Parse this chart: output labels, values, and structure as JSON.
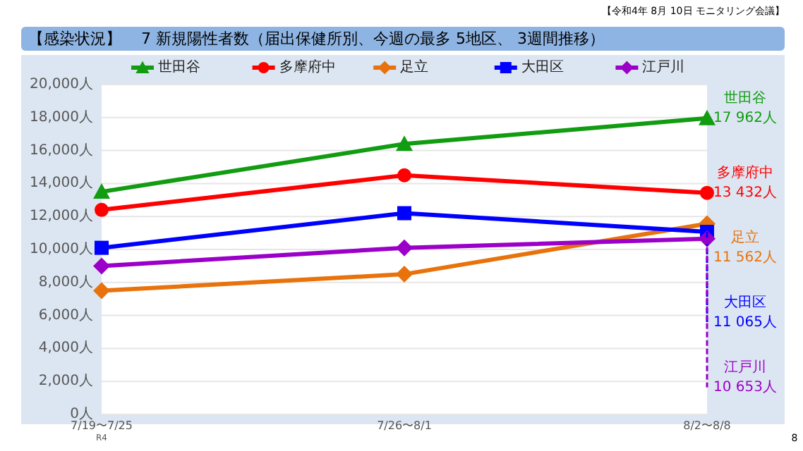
{
  "chart_data": {
    "type": "line",
    "title": "【感染状況】",
    "subtitle": "7 新規陽性者数（届出保健所別、今週の最多 5地区、 3週間推移）",
    "annotations": [
      "【令和4年 8月 10日 モニタリング会議】",
      "R4",
      "8"
    ],
    "categories": [
      "7/19〜7/25",
      "7/26〜8/1",
      "8/2〜8/8"
    ],
    "series": [
      {
        "name": "世田谷",
        "color": "#129c12",
        "marker": "triangle",
        "values": [
          13500,
          16400,
          17962
        ],
        "value_labels": [
          null,
          null,
          "17 962人"
        ]
      },
      {
        "name": "多摩府中",
        "color": "#ff0000",
        "marker": "circle",
        "values": [
          12400,
          14500,
          13432
        ],
        "value_labels": [
          null,
          null,
          "13 432人"
        ]
      },
      {
        "name": "足立",
        "color": "#e8730c",
        "marker": "diamond",
        "values": [
          7500,
          8500,
          11562
        ],
        "value_labels": [
          null,
          null,
          "11 562人"
        ]
      },
      {
        "name": "大田区",
        "color": "#0000ff",
        "marker": "square",
        "values": [
          10100,
          12200,
          11065
        ],
        "value_labels": [
          null,
          null,
          "11 065人"
        ]
      },
      {
        "name": "江戸川",
        "color": "#9b00c8",
        "marker": "diamond",
        "values": [
          9000,
          10100,
          10653
        ],
        "value_labels": [
          null,
          null,
          "10 653人"
        ]
      }
    ],
    "ylim": [
      0,
      20000
    ],
    "yticks": [
      {
        "value": 0,
        "label": "0人"
      },
      {
        "value": 2000,
        "label": "2,000人"
      },
      {
        "value": 4000,
        "label": "4,000人"
      },
      {
        "value": 6000,
        "label": "6,000人"
      },
      {
        "value": 8000,
        "label": "8,000人"
      },
      {
        "value": 10000,
        "label": "10,000人"
      },
      {
        "value": 12000,
        "label": "12,000人"
      },
      {
        "value": 14000,
        "label": "14,000人"
      },
      {
        "value": 16000,
        "label": "16,000人"
      },
      {
        "value": 18000,
        "label": "18,000人"
      },
      {
        "value": 20000,
        "label": "20,000人"
      }
    ],
    "grid": "y",
    "legend": "top",
    "line_style": "solid"
  }
}
